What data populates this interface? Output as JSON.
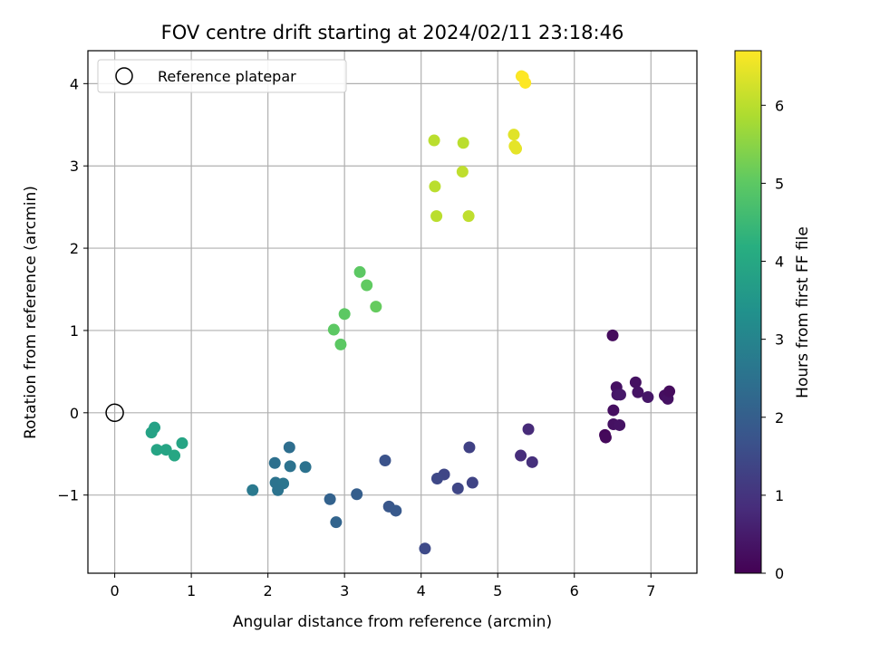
{
  "chart_data": {
    "type": "scatter",
    "title": "FOV centre drift starting at 2024/02/11 23:18:46",
    "xlabel": "Angular distance from reference (arcmin)",
    "ylabel": "Rotation from reference (arcmin)",
    "xlim": [
      -0.35,
      7.6
    ],
    "ylim": [
      -1.95,
      4.4
    ],
    "x_ticks": [
      0,
      1,
      2,
      3,
      4,
      5,
      6,
      7
    ],
    "y_ticks": [
      -1,
      0,
      1,
      2,
      3,
      4
    ],
    "x_tick_labels": [
      "0",
      "1",
      "2",
      "3",
      "4",
      "5",
      "6",
      "7"
    ],
    "y_tick_labels": [
      "−1",
      "0",
      "1",
      "2",
      "3",
      "4"
    ],
    "grid": true,
    "legend_position": "top-left",
    "legend": {
      "label": "Reference platepar"
    },
    "reference_point": {
      "x": 0,
      "y": 0
    },
    "colorbar": {
      "label": "Hours from first FF file",
      "colormap": "viridis",
      "range": [
        0,
        6.7
      ],
      "ticks": [
        0,
        1,
        2,
        3,
        4,
        5,
        6
      ],
      "tick_labels": [
        "0",
        "1",
        "2",
        "3",
        "4",
        "5",
        "6"
      ]
    },
    "points": [
      {
        "x": 6.5,
        "y": 0.94,
        "c": 0.2
      },
      {
        "x": 6.4,
        "y": -0.27,
        "c": 0.1
      },
      {
        "x": 6.41,
        "y": -0.3,
        "c": 0.15
      },
      {
        "x": 6.51,
        "y": -0.14,
        "c": 0.3
      },
      {
        "x": 6.59,
        "y": -0.15,
        "c": 0.35
      },
      {
        "x": 6.51,
        "y": 0.03,
        "c": 0.25
      },
      {
        "x": 6.55,
        "y": 0.31,
        "c": 0.3
      },
      {
        "x": 6.56,
        "y": 0.22,
        "c": 0.4
      },
      {
        "x": 6.6,
        "y": 0.22,
        "c": 0.45
      },
      {
        "x": 6.8,
        "y": 0.37,
        "c": 0.3
      },
      {
        "x": 6.83,
        "y": 0.25,
        "c": 0.35
      },
      {
        "x": 6.96,
        "y": 0.19,
        "c": 0.4
      },
      {
        "x": 7.18,
        "y": 0.21,
        "c": 0.25
      },
      {
        "x": 7.22,
        "y": 0.17,
        "c": 0.3
      },
      {
        "x": 7.24,
        "y": 0.26,
        "c": 0.2
      },
      {
        "x": 5.4,
        "y": -0.2,
        "c": 0.8
      },
      {
        "x": 5.3,
        "y": -0.52,
        "c": 0.85
      },
      {
        "x": 5.45,
        "y": -0.6,
        "c": 0.9
      },
      {
        "x": 4.63,
        "y": -0.42,
        "c": 1.3
      },
      {
        "x": 4.67,
        "y": -0.85,
        "c": 1.35
      },
      {
        "x": 4.3,
        "y": -0.75,
        "c": 1.4
      },
      {
        "x": 4.21,
        "y": -0.8,
        "c": 1.45
      },
      {
        "x": 4.48,
        "y": -0.92,
        "c": 1.4
      },
      {
        "x": 4.05,
        "y": -1.65,
        "c": 1.5
      },
      {
        "x": 3.53,
        "y": -0.58,
        "c": 1.7
      },
      {
        "x": 3.58,
        "y": -1.14,
        "c": 1.8
      },
      {
        "x": 3.67,
        "y": -1.19,
        "c": 1.85
      },
      {
        "x": 3.16,
        "y": -0.99,
        "c": 2.0
      },
      {
        "x": 2.81,
        "y": -1.05,
        "c": 2.1
      },
      {
        "x": 2.89,
        "y": -1.33,
        "c": 2.15
      },
      {
        "x": 2.28,
        "y": -0.42,
        "c": 2.4
      },
      {
        "x": 2.09,
        "y": -0.61,
        "c": 2.45
      },
      {
        "x": 2.29,
        "y": -0.65,
        "c": 2.5
      },
      {
        "x": 2.49,
        "y": -0.66,
        "c": 2.5
      },
      {
        "x": 2.1,
        "y": -0.85,
        "c": 2.55
      },
      {
        "x": 2.2,
        "y": -0.86,
        "c": 2.6
      },
      {
        "x": 2.13,
        "y": -0.94,
        "c": 2.55
      },
      {
        "x": 1.8,
        "y": -0.94,
        "c": 2.7
      },
      {
        "x": 0.52,
        "y": -0.18,
        "c": 3.8
      },
      {
        "x": 0.48,
        "y": -0.24,
        "c": 3.85
      },
      {
        "x": 0.55,
        "y": -0.45,
        "c": 3.9
      },
      {
        "x": 0.67,
        "y": -0.45,
        "c": 3.9
      },
      {
        "x": 0.78,
        "y": -0.52,
        "c": 3.95
      },
      {
        "x": 0.88,
        "y": -0.37,
        "c": 3.9
      },
      {
        "x": 3.2,
        "y": 1.71,
        "c": 5.0
      },
      {
        "x": 3.29,
        "y": 1.55,
        "c": 5.05
      },
      {
        "x": 3.0,
        "y": 1.2,
        "c": 5.0
      },
      {
        "x": 3.41,
        "y": 1.29,
        "c": 5.1
      },
      {
        "x": 2.86,
        "y": 1.01,
        "c": 5.0
      },
      {
        "x": 2.95,
        "y": 0.83,
        "c": 5.0
      },
      {
        "x": 4.17,
        "y": 3.31,
        "c": 6.0
      },
      {
        "x": 4.55,
        "y": 3.28,
        "c": 6.0
      },
      {
        "x": 4.54,
        "y": 2.93,
        "c": 6.05
      },
      {
        "x": 4.18,
        "y": 2.75,
        "c": 6.0
      },
      {
        "x": 4.2,
        "y": 2.39,
        "c": 6.0
      },
      {
        "x": 4.62,
        "y": 2.39,
        "c": 6.05
      },
      {
        "x": 5.21,
        "y": 3.38,
        "c": 6.4
      },
      {
        "x": 5.22,
        "y": 3.24,
        "c": 6.45
      },
      {
        "x": 5.24,
        "y": 3.21,
        "c": 6.45
      },
      {
        "x": 5.31,
        "y": 4.09,
        "c": 6.65
      },
      {
        "x": 5.33,
        "y": 4.08,
        "c": 6.7
      },
      {
        "x": 5.36,
        "y": 4.01,
        "c": 6.7
      }
    ]
  }
}
